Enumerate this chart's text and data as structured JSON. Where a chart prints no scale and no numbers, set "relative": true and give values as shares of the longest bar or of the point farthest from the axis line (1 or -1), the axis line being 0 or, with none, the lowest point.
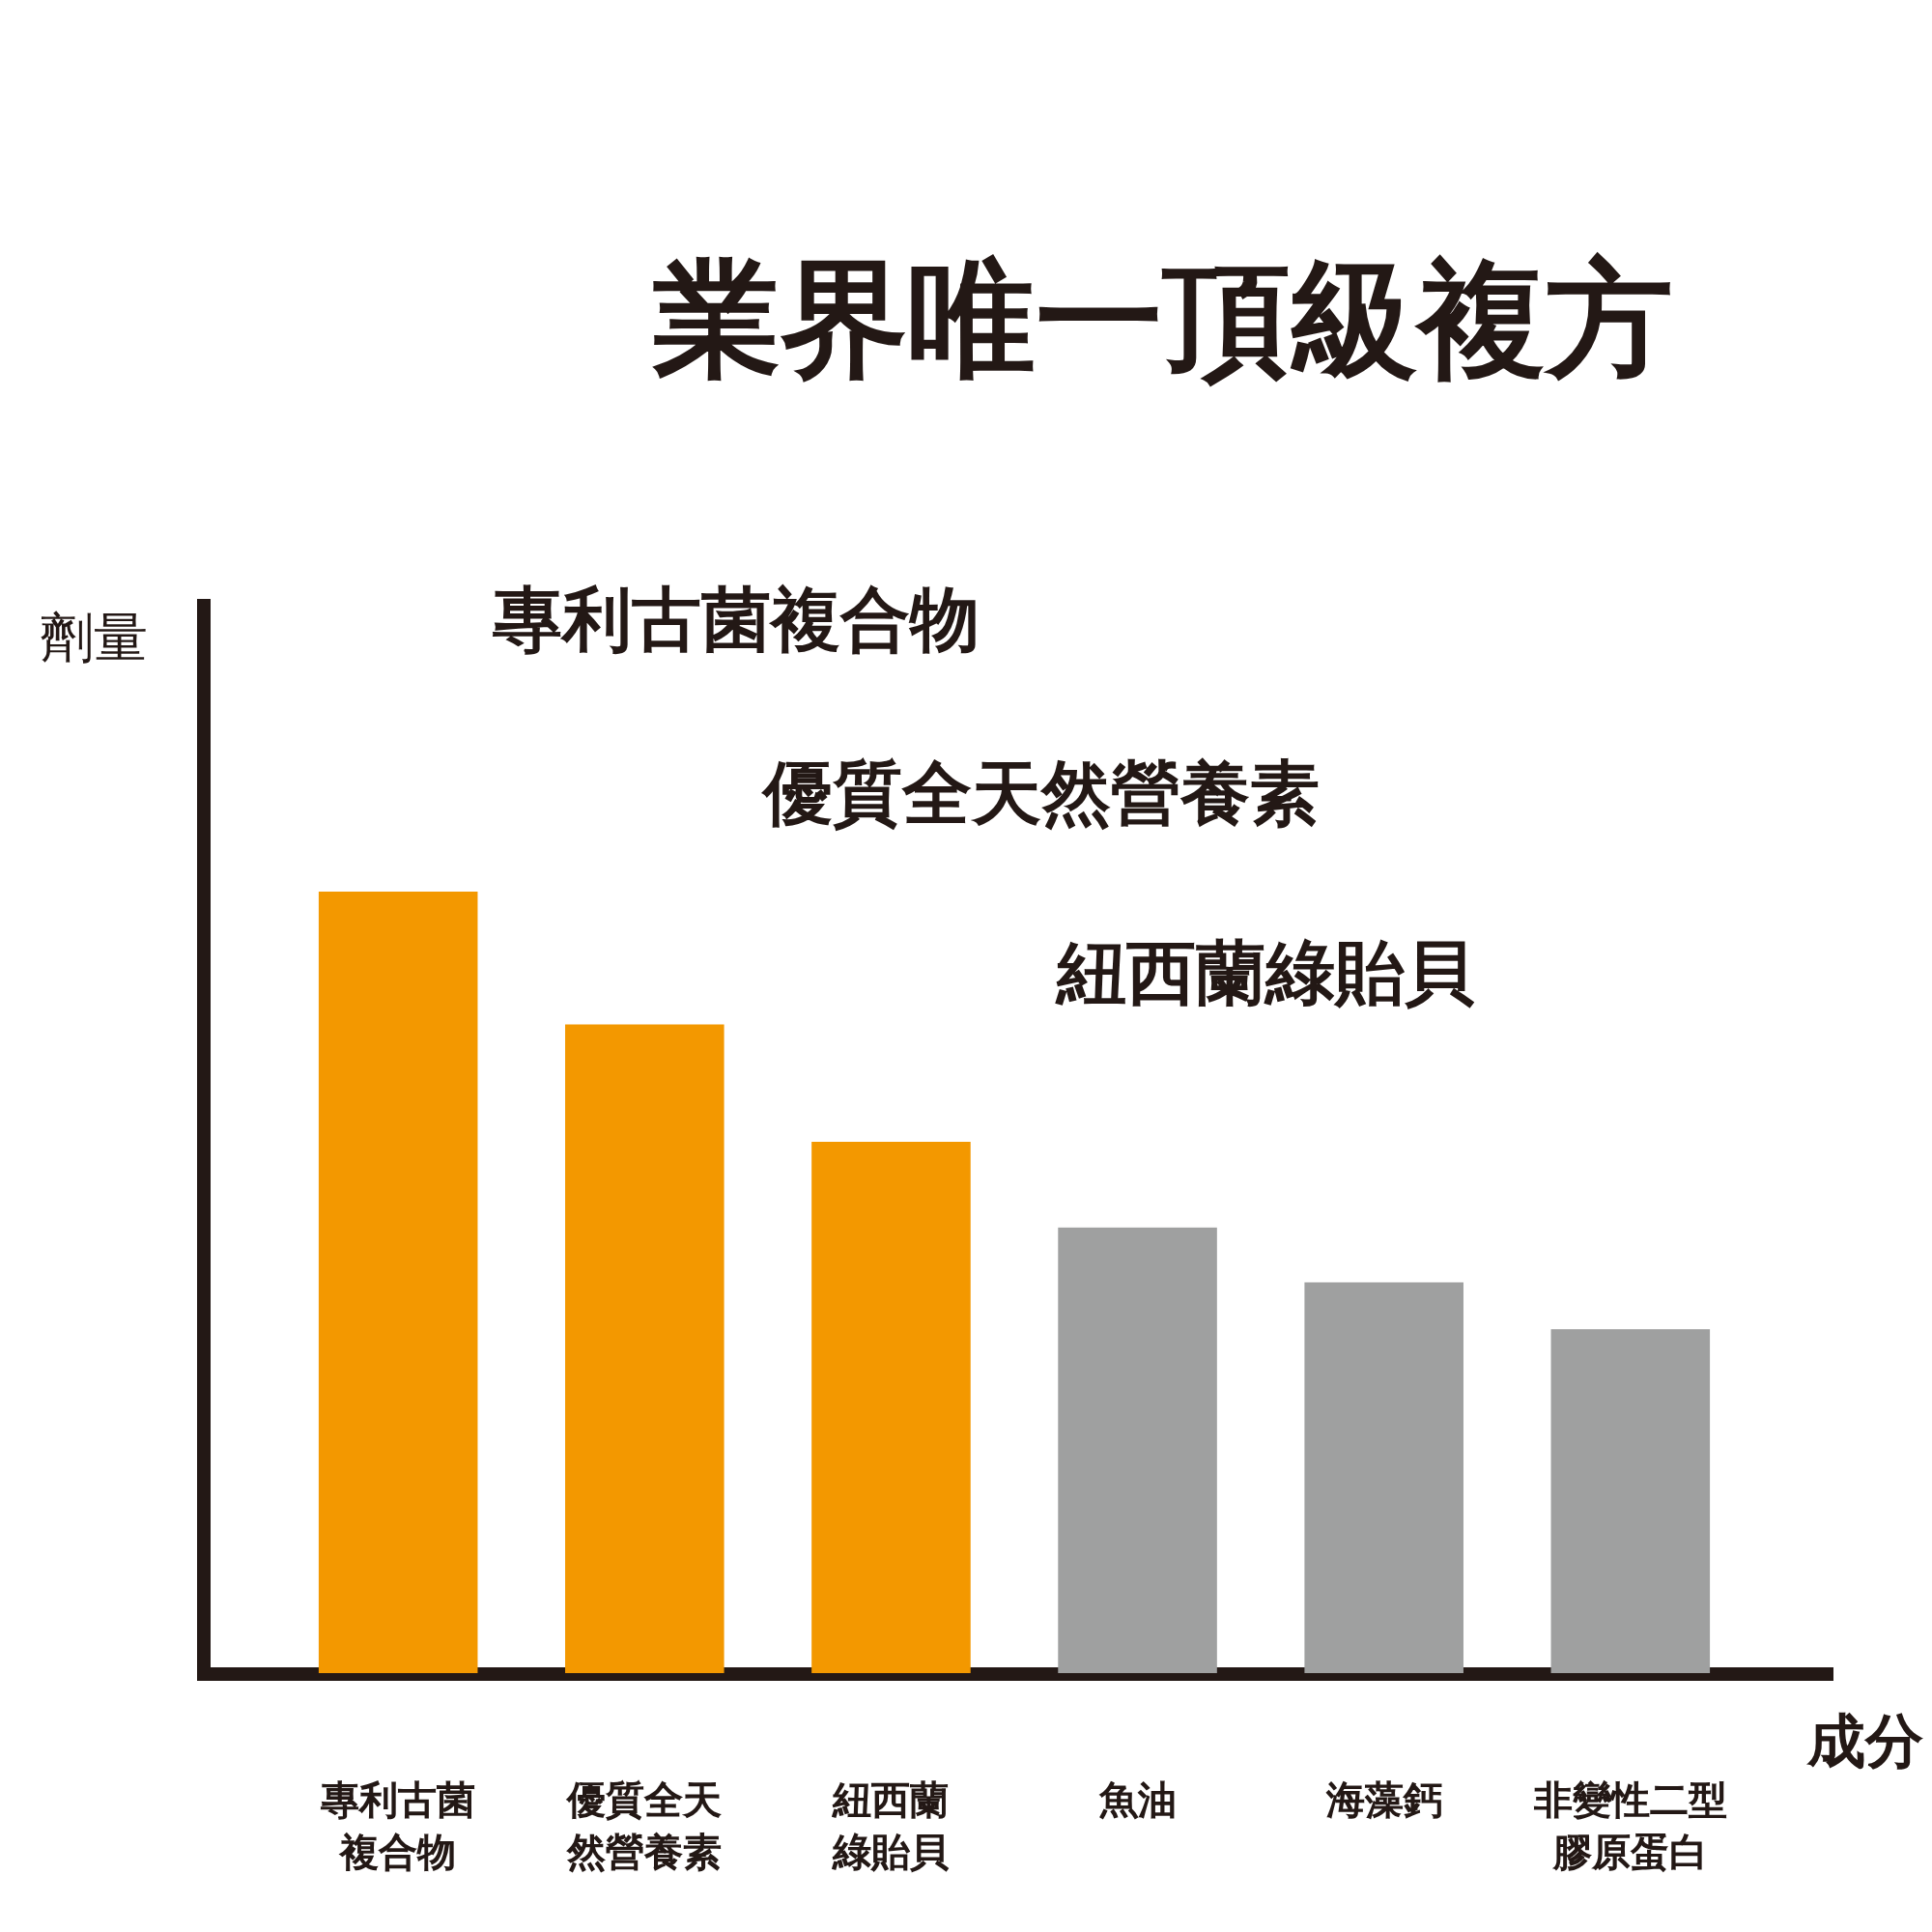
{
  "chart_data": {
    "type": "bar",
    "title": "業界唯一頂級複方",
    "xlabel": "成分",
    "ylabel": "劑量",
    "categories": [
      "專利古菌複合物",
      "優質全天然營養素",
      "紐西蘭綠貽貝",
      "魚油",
      "海藻鈣",
      "非變性二型膠原蛋白"
    ],
    "values": [
      1,
      0.83,
      0.68,
      0.57,
      0.5,
      0.44
    ],
    "colors": [
      "#f39800",
      "#f39800",
      "#f39800",
      "#9fa0a0",
      "#9fa0a0",
      "#9fa0a0"
    ],
    "relative": true,
    "annotations": [
      "專利古菌複合物",
      "優質全天然營養素",
      "紐西蘭綠貽貝"
    ]
  }
}
